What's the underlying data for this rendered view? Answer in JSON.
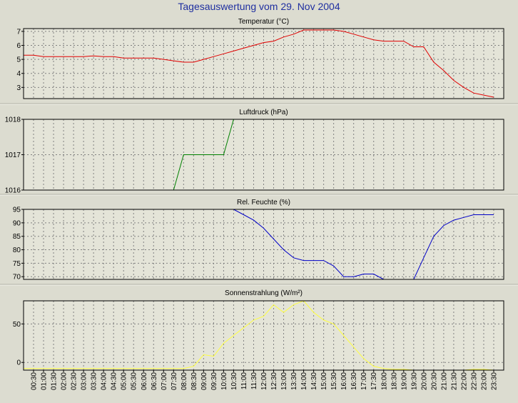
{
  "title": "Tagesauswertung vom 29. Nov 2004",
  "x_labels": [
    "00:30",
    "01:00",
    "01:30",
    "02:00",
    "02:30",
    "03:00",
    "03:30",
    "04:00",
    "04:30",
    "05:00",
    "05:30",
    "06:00",
    "06:30",
    "07:00",
    "07:30",
    "08:00",
    "08:30",
    "09:00",
    "09:30",
    "10:00",
    "10:30",
    "11:00",
    "11:30",
    "12:00",
    "12:30",
    "13:00",
    "13:30",
    "14:00",
    "14:30",
    "15:00",
    "15:30",
    "16:00",
    "16:30",
    "17:00",
    "17:30",
    "18:00",
    "18:30",
    "19:00",
    "19:30",
    "20:00",
    "20:30",
    "21:00",
    "21:30",
    "22:00",
    "22:30",
    "23:00",
    "23:30"
  ],
  "colors": {
    "background": "#dcdcd0",
    "plot_background": "#e4e4d8",
    "title": "#1f2fa0",
    "temperature": "#e00000",
    "pressure": "#008000",
    "humidity": "#0000c8",
    "radiation": "#ffff40",
    "grid": "#808080"
  },
  "chart_data": [
    {
      "type": "line",
      "title": "Temperatur (°C)",
      "ylim": [
        2.2,
        7.2
      ],
      "yticks": [
        3,
        4,
        5,
        6,
        7
      ],
      "grid": true,
      "x_unit": "hour of day",
      "x": [
        0,
        0.5,
        1,
        1.5,
        2,
        2.5,
        3,
        3.5,
        4,
        4.5,
        5,
        5.5,
        6,
        6.5,
        7,
        7.5,
        8,
        8.5,
        9,
        9.5,
        10,
        10.5,
        11,
        11.5,
        12,
        12.5,
        13,
        13.5,
        14,
        14.5,
        15,
        15.5,
        16,
        16.5,
        17,
        17.5,
        18,
        18.5,
        19,
        19.5,
        20,
        20.5,
        21,
        21.5,
        22,
        22.5,
        23,
        23.5
      ],
      "series": [
        {
          "values": [
            5.3,
            5.3,
            5.2,
            5.2,
            5.2,
            5.2,
            5.2,
            5.25,
            5.2,
            5.2,
            5.1,
            5.1,
            5.1,
            5.1,
            5.0,
            4.9,
            4.8,
            4.8,
            5.0,
            5.2,
            5.4,
            5.6,
            5.8,
            6.0,
            6.2,
            6.3,
            6.6,
            6.8,
            7.1,
            7.1,
            7.1,
            7.1,
            7.0,
            6.8,
            6.6,
            6.4,
            6.3,
            6.3,
            6.3,
            5.9,
            5.9,
            4.8,
            4.2,
            3.5,
            3.0,
            2.6,
            2.45,
            2.3
          ]
        }
      ]
    },
    {
      "type": "line",
      "title": "Luftdruck (hPa)",
      "ylim": [
        1016,
        1018
      ],
      "yticks": [
        1016,
        1017,
        1018
      ],
      "grid": true,
      "x_unit": "hour of day",
      "x": [
        7.5,
        8.0,
        9.5,
        10.0,
        10.5
      ],
      "series": [
        {
          "values": [
            1016,
            1017,
            1017,
            1017,
            1018
          ]
        }
      ]
    },
    {
      "type": "line",
      "title": "Rel. Feuchte (%)",
      "ylim": [
        69,
        95
      ],
      "yticks": [
        70,
        75,
        80,
        85,
        90,
        95
      ],
      "grid": true,
      "x_unit": "hour of day",
      "x": [
        10.5,
        11.0,
        11.5,
        12.0,
        12.5,
        13.0,
        13.5,
        14.0,
        14.5,
        15.0,
        15.5,
        16.0,
        16.5,
        17.0,
        17.5,
        18.0,
        18.5,
        19.0,
        19.5,
        20.0,
        20.5,
        21.0,
        21.5,
        22.0,
        22.5,
        23.0,
        23.5
      ],
      "series": [
        {
          "values": [
            95,
            93,
            91,
            88,
            84,
            80,
            77,
            76,
            76,
            76,
            74,
            70,
            70,
            71,
            71,
            69,
            69,
            69,
            69,
            77,
            85,
            89,
            91,
            92,
            93,
            93,
            93
          ]
        }
      ]
    },
    {
      "type": "line",
      "title": "Sonnenstrahlung (W/m²)",
      "ylim": [
        -10,
        80
      ],
      "yticks": [
        0,
        50
      ],
      "grid": true,
      "x_unit": "hour of day",
      "x": [
        0,
        0.5,
        1,
        1.5,
        2,
        2.5,
        3,
        3.5,
        4,
        4.5,
        5,
        5.5,
        6,
        6.5,
        7,
        7.5,
        8,
        8.5,
        9,
        9.5,
        10,
        10.5,
        11,
        11.5,
        12,
        12.5,
        13,
        13.5,
        14,
        14.5,
        15,
        15.5,
        16,
        16.5,
        17,
        17.5,
        18,
        18.5,
        19,
        19.5,
        20,
        20.5,
        21,
        21.5,
        22,
        22.5,
        23,
        23.5
      ],
      "series": [
        {
          "values": [
            -8,
            -8,
            -8,
            -8,
            -8,
            -8,
            -8,
            -8,
            -8,
            -8,
            -8,
            -8,
            -8,
            -8,
            -8,
            -8,
            -8,
            -5,
            10,
            8,
            25,
            35,
            45,
            55,
            60,
            75,
            65,
            75,
            80,
            65,
            55,
            50,
            35,
            20,
            5,
            -5,
            -8,
            -9,
            -9,
            -10,
            -10,
            -10,
            -10,
            -10,
            -10,
            -9,
            -9,
            -10
          ]
        }
      ]
    }
  ]
}
